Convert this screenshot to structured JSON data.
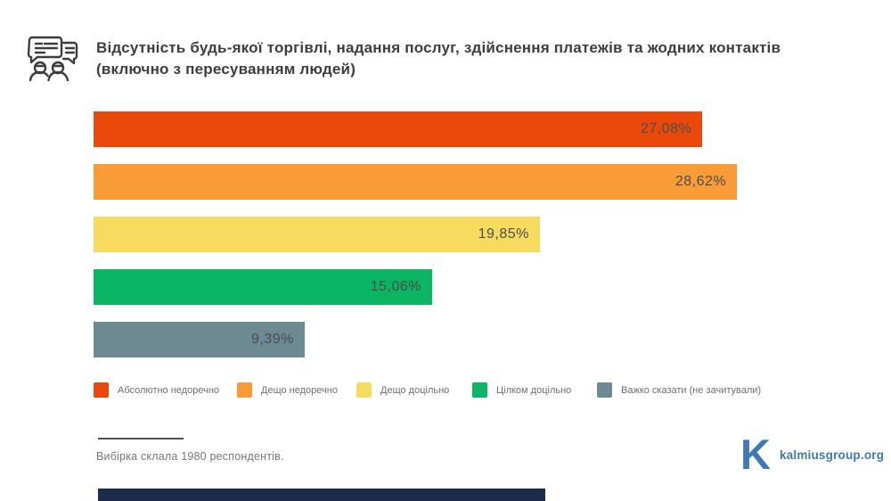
{
  "header": {
    "title_line1": "Відсутність будь-якої торгівлі, надання послуг, здійснення платежів та жодних контактів",
    "title_line2": "(включно з пересуванням людей)",
    "icon": "people-conversation-icon",
    "icon_color": "#3d3d3d"
  },
  "chart_data": {
    "type": "bar",
    "orientation": "horizontal",
    "title": "Відсутність будь-якої торгівлі, надання послуг, здійснення платежів та жодних контактів (включно з пересуванням людей)",
    "categories": [
      "Абсолютно недоречно",
      "Дещо недоречно",
      "Дещо доцільно",
      "Цілком доцільно",
      "Важко сказати (не зачитували)"
    ],
    "values": [
      27.08,
      28.62,
      19.85,
      15.06,
      9.39
    ],
    "value_labels": [
      "27,08%",
      "28,62%",
      "19,85%",
      "15,06%",
      "9,39%"
    ],
    "colors": [
      "#EB490C",
      "#F99C38",
      "#F7DB5E",
      "#0AB563",
      "#6C8994"
    ],
    "xlabel": "",
    "ylabel": "",
    "xlim": [
      0,
      30.2
    ],
    "grid": false,
    "legend_position": "bottom",
    "value_label_position": "inside-end"
  },
  "footer": {
    "note": "Вибірка склала 1980 респондентів.",
    "logo_letter": "K",
    "logo_text": "kalmiusgroup.org",
    "logo_color": "#3E79B4",
    "accent_bar_color": "#1E2C4C"
  }
}
